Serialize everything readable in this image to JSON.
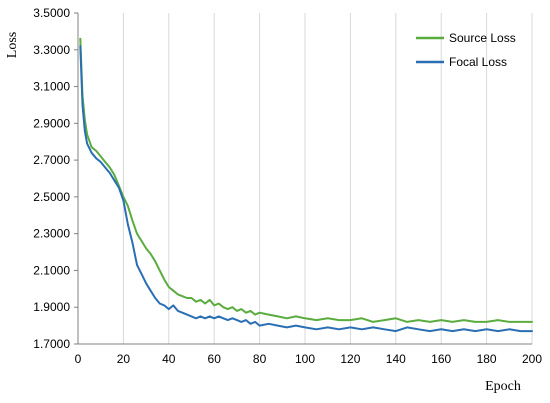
{
  "chart_data": {
    "type": "line",
    "title": "",
    "xlabel": "Epoch",
    "ylabel": "Loss",
    "xlim": [
      0,
      200
    ],
    "ylim": [
      1.7,
      3.5
    ],
    "x_ticks": [
      "0",
      "20",
      "40",
      "60",
      "80",
      "100",
      "120",
      "140",
      "160",
      "180",
      "200"
    ],
    "y_ticks": [
      "1.7000",
      "1.9000",
      "2.1000",
      "2.3000",
      "2.5000",
      "2.7000",
      "2.9000",
      "3.1000",
      "3.3000",
      "3.5000"
    ],
    "grid": "vertical",
    "legend_position": "top-right",
    "series": [
      {
        "name": "Source Loss",
        "color": "#5aac3f",
        "x": [
          1,
          2,
          3,
          4,
          6,
          8,
          10,
          12,
          14,
          16,
          18,
          20,
          22,
          24,
          26,
          28,
          30,
          32,
          34,
          36,
          38,
          40,
          42,
          44,
          46,
          48,
          50,
          52,
          54,
          56,
          58,
          60,
          62,
          64,
          66,
          68,
          70,
          72,
          74,
          76,
          78,
          80,
          84,
          88,
          92,
          96,
          100,
          105,
          110,
          115,
          120,
          125,
          130,
          135,
          140,
          145,
          150,
          155,
          160,
          165,
          170,
          175,
          180,
          185,
          190,
          195,
          200
        ],
        "values": [
          3.36,
          3.05,
          2.92,
          2.84,
          2.77,
          2.75,
          2.72,
          2.69,
          2.66,
          2.62,
          2.56,
          2.5,
          2.45,
          2.37,
          2.3,
          2.26,
          2.22,
          2.19,
          2.15,
          2.1,
          2.05,
          2.01,
          1.99,
          1.97,
          1.96,
          1.95,
          1.95,
          1.93,
          1.94,
          1.92,
          1.94,
          1.91,
          1.92,
          1.9,
          1.89,
          1.9,
          1.88,
          1.89,
          1.87,
          1.88,
          1.86,
          1.87,
          1.86,
          1.85,
          1.84,
          1.85,
          1.84,
          1.83,
          1.84,
          1.83,
          1.83,
          1.84,
          1.82,
          1.83,
          1.84,
          1.82,
          1.83,
          1.82,
          1.83,
          1.82,
          1.83,
          1.82,
          1.82,
          1.83,
          1.82,
          1.82,
          1.82
        ]
      },
      {
        "name": "Focal Loss",
        "color": "#2a6fb3",
        "x": [
          1,
          2,
          3,
          4,
          6,
          8,
          10,
          12,
          14,
          16,
          18,
          20,
          22,
          24,
          26,
          28,
          30,
          32,
          34,
          36,
          38,
          40,
          42,
          44,
          46,
          48,
          50,
          52,
          54,
          56,
          58,
          60,
          62,
          64,
          66,
          68,
          70,
          72,
          74,
          76,
          78,
          80,
          84,
          88,
          92,
          96,
          100,
          105,
          110,
          115,
          120,
          125,
          130,
          135,
          140,
          145,
          150,
          155,
          160,
          165,
          170,
          175,
          180,
          185,
          190,
          195,
          200
        ],
        "values": [
          3.32,
          3.0,
          2.86,
          2.79,
          2.74,
          2.71,
          2.69,
          2.66,
          2.63,
          2.59,
          2.55,
          2.48,
          2.35,
          2.25,
          2.13,
          2.08,
          2.03,
          1.99,
          1.95,
          1.92,
          1.91,
          1.89,
          1.91,
          1.88,
          1.87,
          1.86,
          1.85,
          1.84,
          1.85,
          1.84,
          1.85,
          1.84,
          1.85,
          1.84,
          1.83,
          1.84,
          1.83,
          1.82,
          1.83,
          1.81,
          1.82,
          1.8,
          1.81,
          1.8,
          1.79,
          1.8,
          1.79,
          1.78,
          1.79,
          1.78,
          1.79,
          1.78,
          1.79,
          1.78,
          1.77,
          1.79,
          1.78,
          1.77,
          1.78,
          1.77,
          1.78,
          1.77,
          1.78,
          1.77,
          1.78,
          1.77,
          1.77
        ]
      }
    ]
  }
}
